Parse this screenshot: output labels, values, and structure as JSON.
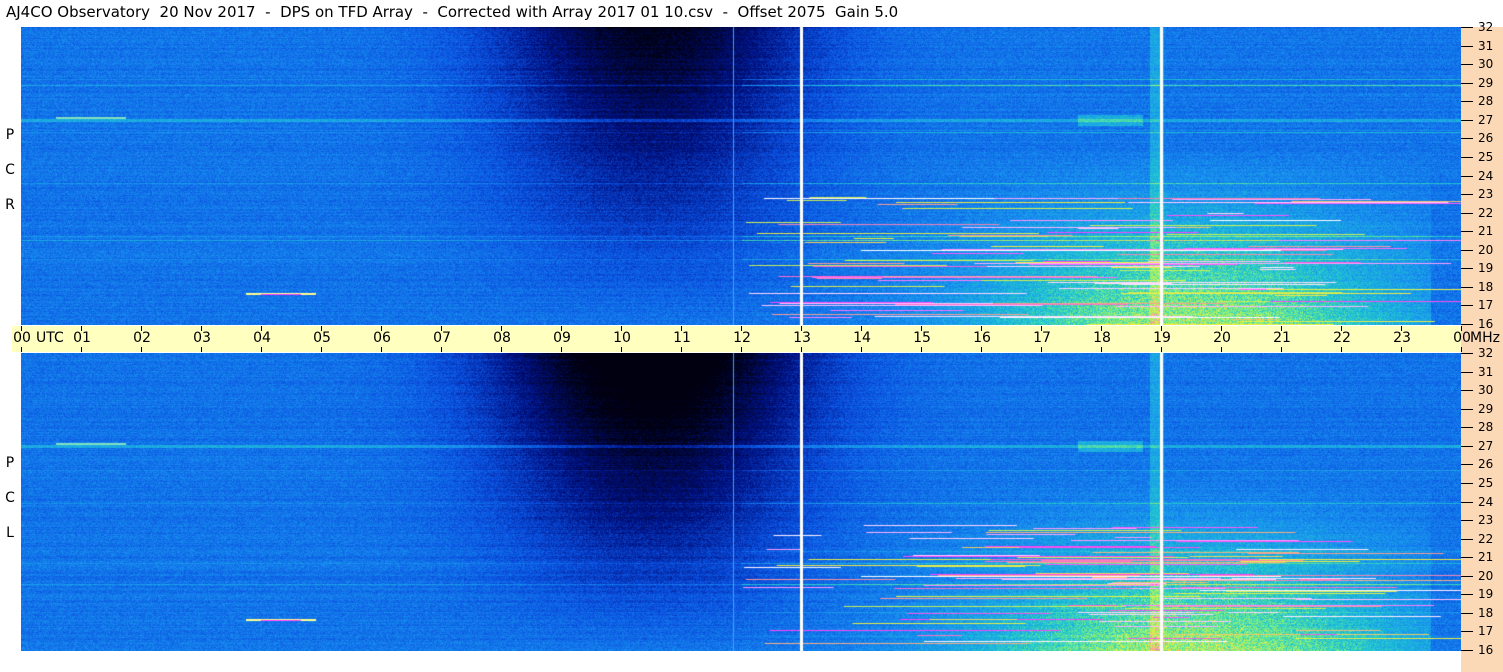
{
  "title": "AJ4CO Observatory  20 Nov 2017  -  DPS on TFD Array  -  Corrected with Array 2017 01 10.csv  -  Offset 2075  Gain 5.0",
  "chart_data": {
    "type": "heatmap",
    "title": "AJ4CO Observatory  20 Nov 2017  -  DPS on TFD Array  -  Corrected with Array 2017 01 10.csv  -  Offset 2075  Gain 5.0",
    "x_unit": "UTC",
    "y_unit": "MHz",
    "x_ticks": [
      "00",
      "01",
      "02",
      "03",
      "04",
      "05",
      "06",
      "07",
      "08",
      "09",
      "10",
      "11",
      "12",
      "13",
      "14",
      "15",
      "16",
      "17",
      "18",
      "19",
      "20",
      "21",
      "22",
      "23",
      "00"
    ],
    "y_ticks": [
      "32",
      "31",
      "30",
      "29",
      "28",
      "27",
      "26",
      "25",
      "24",
      "23",
      "22",
      "21",
      "20",
      "19",
      "18",
      "17",
      "16"
    ],
    "xlim": [
      0,
      24
    ],
    "ylim": [
      16,
      32
    ],
    "panels": [
      {
        "name": "R C P",
        "label_letters": [
          "R",
          "C",
          "P"
        ]
      },
      {
        "name": "L C P",
        "label_letters": [
          "L",
          "C",
          "P"
        ]
      }
    ],
    "colormap": [
      "#000010",
      "#001080",
      "#0a50e0",
      "#1890f0",
      "#20c8d0",
      "#80f080",
      "#f0f040",
      "#ff40ff",
      "#ffffff"
    ],
    "features": {
      "white_vertical_markers_utc": [
        13,
        19
      ],
      "dark_high_freq_period_utc": [
        6,
        13
      ],
      "strong_interference_period_utc": [
        12,
        23.5
      ],
      "strong_interference_band_mhz": [
        16,
        23
      ],
      "persistent_line_mhz": 27
    }
  }
}
